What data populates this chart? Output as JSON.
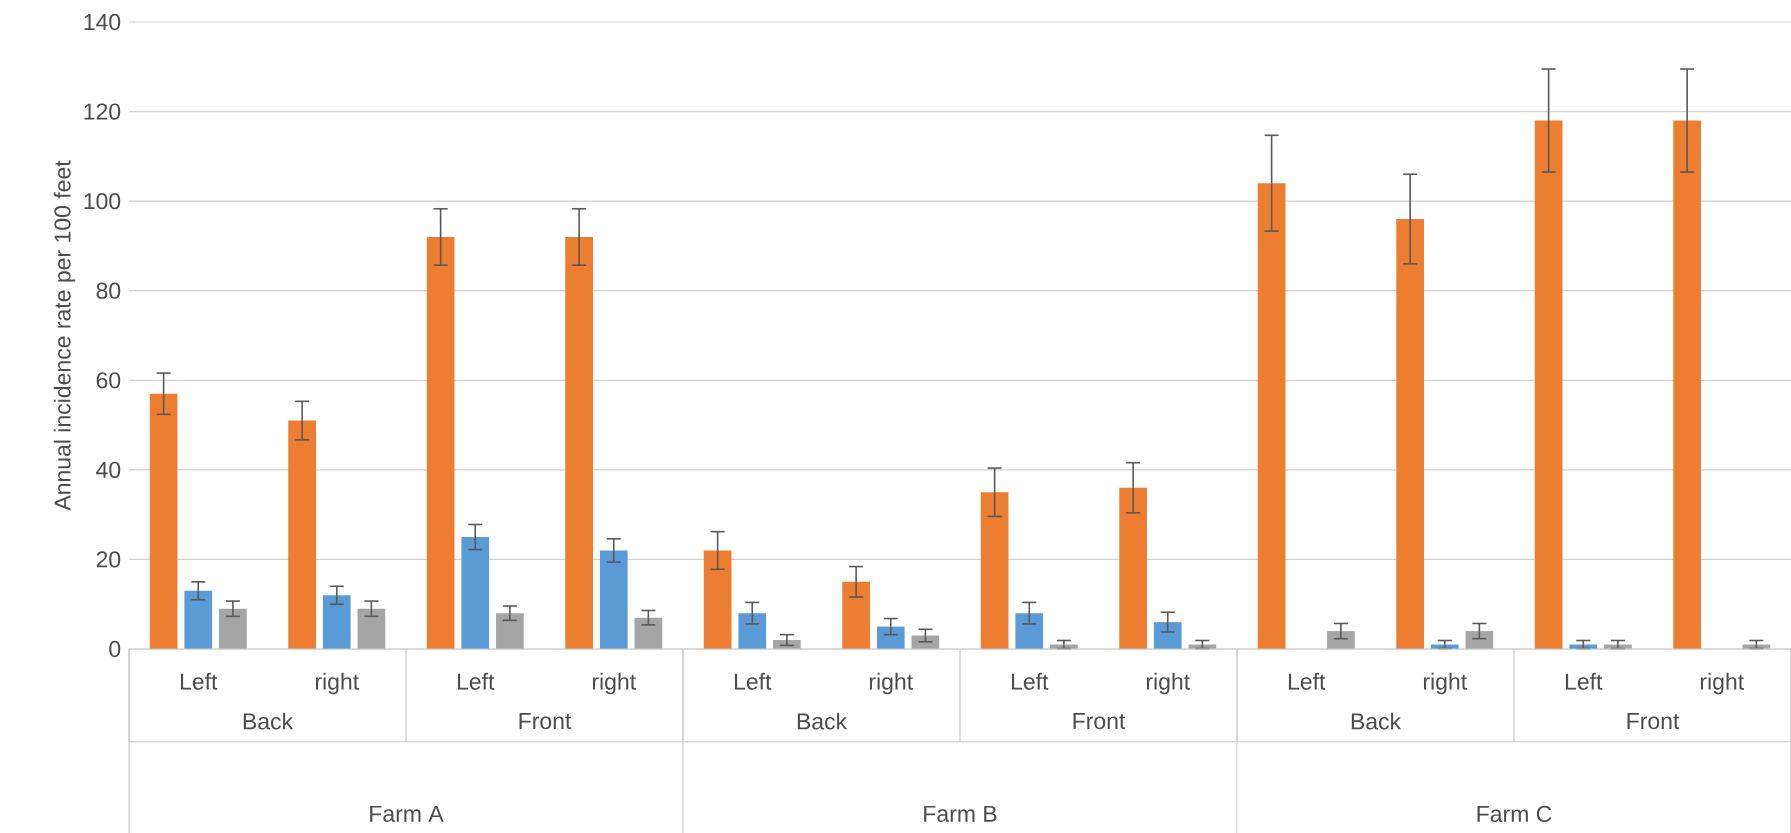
{
  "chart_data": {
    "type": "bar",
    "ylabel": "Annual incidence rate per 100 feet",
    "categories": [
      "Left",
      "right",
      "Left",
      "right",
      "Left",
      "right",
      "Left",
      "right",
      "Left",
      "right",
      "Left",
      "right"
    ],
    "annotations": [
      "Back",
      "Front",
      "Back",
      "Front",
      "Back",
      "Front",
      "Farm A",
      "Farm B",
      "Farm C"
    ],
    "series": [
      {
        "color": "#ed7d31",
        "values": [
          57,
          51,
          92,
          92,
          22,
          15,
          35,
          36,
          104,
          96,
          118,
          118
        ],
        "errors": [
          4.6,
          4.3,
          6.3,
          6.3,
          4.2,
          3.4,
          5.4,
          5.6,
          10.7,
          10,
          11.5,
          11.5
        ]
      },
      {
        "color": "#5b9bd5",
        "values": [
          13,
          12,
          25,
          22,
          8,
          5,
          8,
          6,
          0,
          1,
          1,
          0
        ],
        "errors": [
          2,
          2,
          2.8,
          2.6,
          2.4,
          1.8,
          2.4,
          2.2,
          null,
          0.9,
          0.9,
          null
        ]
      },
      {
        "color": "#a5a5a5",
        "values": [
          9,
          9,
          8,
          7,
          2,
          3,
          1,
          1,
          4,
          4,
          1,
          1
        ],
        "errors": [
          1.7,
          1.7,
          1.6,
          1.6,
          1.2,
          1.4,
          0.9,
          0.9,
          1.7,
          1.7,
          0.9,
          0.9
        ]
      }
    ],
    "ylim": [
      0,
      140
    ],
    "yticks": [
      0,
      20,
      40,
      60,
      80,
      100,
      120,
      140
    ],
    "grid": "y"
  }
}
